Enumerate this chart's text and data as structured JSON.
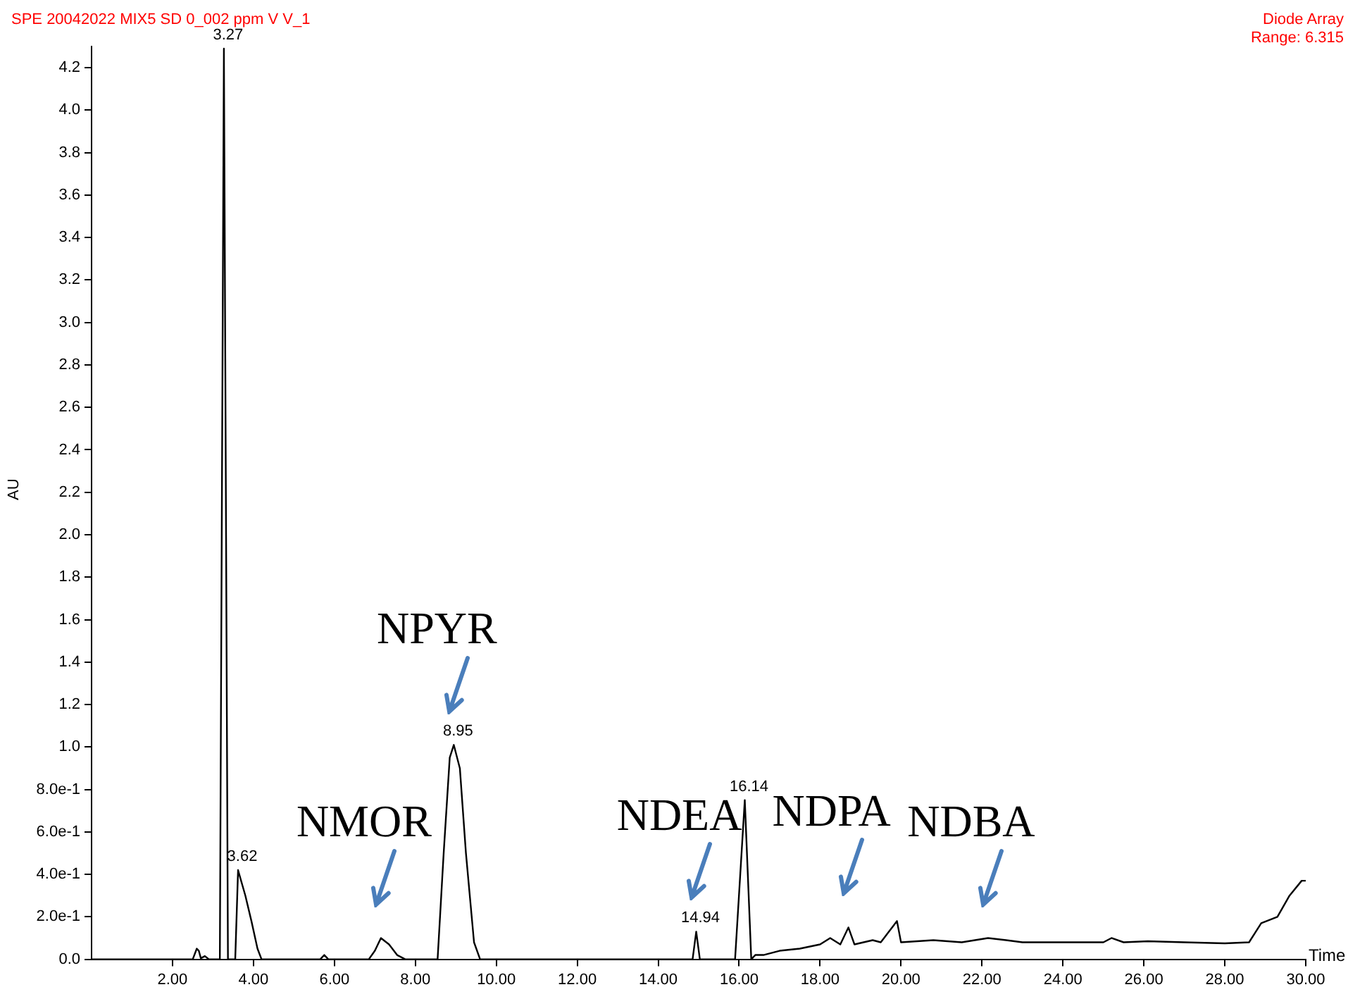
{
  "chart_data": {
    "type": "line",
    "title": "SPE 20042022 MIX5 SD 0_002 ppm V V_1",
    "xlabel": "Time",
    "ylabel": "AU",
    "annotations": [
      "Diode Array",
      "Range: 6.315",
      {
        "text": "3.27",
        "x": 3.27,
        "y": 4.29
      },
      {
        "text": "3.62",
        "x": 3.62,
        "y": 0.42
      },
      {
        "text": "8.95",
        "x": 8.95,
        "y": 1.01
      },
      {
        "text": "14.94",
        "x": 14.94,
        "y": 0.13
      },
      {
        "text": "16.14",
        "x": 16.14,
        "y": 0.75
      },
      {
        "text": "NMOR",
        "x": 7.15,
        "y": 0.1
      },
      {
        "text": "NPYR",
        "x": 8.95,
        "y": 1.01
      },
      {
        "text": "NDEA",
        "x": 14.94,
        "y": 0.13
      },
      {
        "text": "NDPA",
        "x": 18.7,
        "y": 0.15
      },
      {
        "text": "NDBA",
        "x": 22.15,
        "y": 0.1
      }
    ],
    "series": [
      {
        "color": "#000000",
        "x": [
          0,
          2.5,
          2.6,
          2.65,
          2.7,
          2.8,
          2.9,
          3.17,
          3.27,
          3.37,
          3.55,
          3.62,
          3.8,
          3.95,
          4.1,
          4.2,
          5.65,
          5.75,
          5.85,
          6.85,
          7.0,
          7.15,
          7.35,
          7.55,
          7.75,
          8.55,
          8.7,
          8.85,
          8.95,
          9.1,
          9.25,
          9.45,
          9.6,
          14.85,
          14.94,
          15.03,
          15.9,
          16.14,
          16.3,
          16.4,
          16.6,
          17.0,
          17.5,
          18.0,
          18.25,
          18.5,
          18.7,
          18.85,
          19.3,
          19.5,
          19.9,
          20.0,
          20.8,
          21.5,
          22.15,
          22.6,
          23.0,
          24.0,
          25.0,
          25.2,
          25.5,
          26.1,
          27.0,
          28.0,
          28.6,
          28.9,
          29.3,
          29.6,
          29.9,
          30.0
        ],
        "values": [
          0,
          0,
          0.05,
          0.04,
          0.005,
          0.015,
          0,
          0,
          4.29,
          0,
          0,
          0.42,
          0.3,
          0.18,
          0.05,
          0,
          0,
          0.02,
          0,
          0,
          0.04,
          0.1,
          0.07,
          0.02,
          0,
          0,
          0.5,
          0.95,
          1.01,
          0.9,
          0.5,
          0.08,
          0,
          0,
          0.13,
          0,
          0,
          0.75,
          0,
          0.02,
          0.02,
          0.04,
          0.05,
          0.07,
          0.1,
          0.07,
          0.15,
          0.07,
          0.09,
          0.08,
          0.18,
          0.08,
          0.09,
          0.08,
          0.1,
          0.09,
          0.08,
          0.08,
          0.08,
          0.1,
          0.08,
          0.085,
          0.08,
          0.075,
          0.08,
          0.17,
          0.2,
          0.3,
          0.37,
          0.37
        ]
      }
    ],
    "xlim": [
      0,
      30
    ],
    "xticks": [
      {
        "value": 2,
        "label": "2.00"
      },
      {
        "value": 4,
        "label": "4.00"
      },
      {
        "value": 6,
        "label": "6.00"
      },
      {
        "value": 8,
        "label": "8.00"
      },
      {
        "value": 10,
        "label": "10.00"
      },
      {
        "value": 12,
        "label": "12.00"
      },
      {
        "value": 14,
        "label": "14.00"
      },
      {
        "value": 16,
        "label": "16.00"
      },
      {
        "value": 18,
        "label": "18.00"
      },
      {
        "value": 20,
        "label": "20.00"
      },
      {
        "value": 22,
        "label": "22.00"
      },
      {
        "value": 24,
        "label": "24.00"
      },
      {
        "value": 26,
        "label": "26.00"
      },
      {
        "value": 28,
        "label": "28.00"
      },
      {
        "value": 30,
        "label": "30.00"
      }
    ],
    "ylim": [
      0,
      4.3
    ],
    "yticks": [
      {
        "value": 0,
        "label": "0.0"
      },
      {
        "value": 0.2,
        "label": "2.0e-1"
      },
      {
        "value": 0.4,
        "label": "4.0e-1"
      },
      {
        "value": 0.6,
        "label": "6.0e-1"
      },
      {
        "value": 0.8,
        "label": "8.0e-1"
      },
      {
        "value": 1.0,
        "label": "1.0"
      },
      {
        "value": 1.2,
        "label": "1.2"
      },
      {
        "value": 1.4,
        "label": "1.4"
      },
      {
        "value": 1.6,
        "label": "1.6"
      },
      {
        "value": 1.8,
        "label": "1.8"
      },
      {
        "value": 2.0,
        "label": "2.0"
      },
      {
        "value": 2.2,
        "label": "2.2"
      },
      {
        "value": 2.4,
        "label": "2.4"
      },
      {
        "value": 2.6,
        "label": "2.6"
      },
      {
        "value": 2.8,
        "label": "2.8"
      },
      {
        "value": 3.0,
        "label": "3.0"
      },
      {
        "value": 3.2,
        "label": "3.2"
      },
      {
        "value": 3.4,
        "label": "3.4"
      },
      {
        "value": 3.6,
        "label": "3.6"
      },
      {
        "value": 3.8,
        "label": "3.8"
      },
      {
        "value": 4.0,
        "label": "4.0"
      },
      {
        "value": 4.2,
        "label": "4.2"
      }
    ],
    "marker": "none",
    "line_style": "solid"
  }
}
